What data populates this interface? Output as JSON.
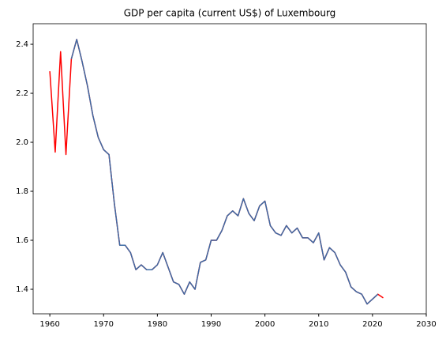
{
  "chart_data": {
    "type": "line",
    "title": "GDP per capita (current US$) of Luxembourg",
    "x": [
      1960,
      1961,
      1962,
      1963,
      1964,
      1965,
      1966,
      1967,
      1968,
      1969,
      1970,
      1971,
      1972,
      1973,
      1974,
      1975,
      1976,
      1977,
      1978,
      1979,
      1980,
      1981,
      1982,
      1983,
      1984,
      1985,
      1986,
      1987,
      1988,
      1989,
      1990,
      1991,
      1992,
      1993,
      1994,
      1995,
      1996,
      1997,
      1998,
      1999,
      2000,
      2001,
      2002,
      2003,
      2004,
      2005,
      2006,
      2007,
      2008,
      2009,
      2010,
      2011,
      2012,
      2013,
      2014,
      2015,
      2016,
      2017,
      2018,
      2019,
      2020,
      2021,
      2022
    ],
    "series": [
      {
        "color": "#ff0000",
        "values": [
          2.29,
          1.96,
          2.37,
          1.95,
          2.34,
          2.42,
          2.33,
          2.23,
          2.11,
          2.02,
          1.97,
          1.95,
          1.75,
          1.58,
          1.58,
          1.55,
          1.48,
          1.5,
          1.48,
          1.48,
          1.5,
          1.55,
          1.49,
          1.43,
          1.42,
          1.38,
          1.43,
          1.4,
          1.51,
          1.52,
          1.6,
          1.6,
          1.64,
          1.7,
          1.72,
          1.7,
          1.77,
          1.71,
          1.68,
          1.74,
          1.76,
          1.66,
          1.63,
          1.62,
          1.66,
          1.63,
          1.65,
          1.61,
          1.61,
          1.59,
          1.63,
          1.52,
          1.57,
          1.55,
          1.5,
          1.47,
          1.41,
          1.39,
          1.38,
          1.34,
          1.36,
          1.38,
          1.365
        ]
      },
      {
        "color": "#3b6ba5",
        "values": [
          null,
          null,
          null,
          null,
          2.34,
          2.42,
          2.33,
          2.23,
          2.11,
          2.02,
          1.97,
          1.95,
          1.75,
          1.58,
          1.58,
          1.55,
          1.48,
          1.5,
          1.48,
          1.48,
          1.5,
          1.55,
          1.49,
          1.43,
          1.42,
          1.38,
          1.43,
          1.4,
          1.51,
          1.52,
          1.6,
          1.6,
          1.64,
          1.7,
          1.72,
          1.7,
          1.77,
          1.71,
          1.68,
          1.74,
          1.76,
          1.66,
          1.63,
          1.62,
          1.66,
          1.63,
          1.65,
          1.61,
          1.61,
          1.59,
          1.63,
          1.52,
          1.57,
          1.55,
          1.5,
          1.47,
          1.41,
          1.39,
          1.38,
          1.34,
          1.36,
          1.38,
          null
        ]
      }
    ],
    "xlim": [
      1956.9,
      2030
    ],
    "xticks": [
      1960,
      1970,
      1980,
      1990,
      2000,
      2010,
      2020,
      2030
    ],
    "ylim": [
      1.3,
      2.484
    ],
    "yticks": [
      1.4,
      1.6,
      1.8,
      {
        "value": 2,
        "label": "2.0"
      },
      2.2,
      2.4
    ],
    "grid": false
  }
}
